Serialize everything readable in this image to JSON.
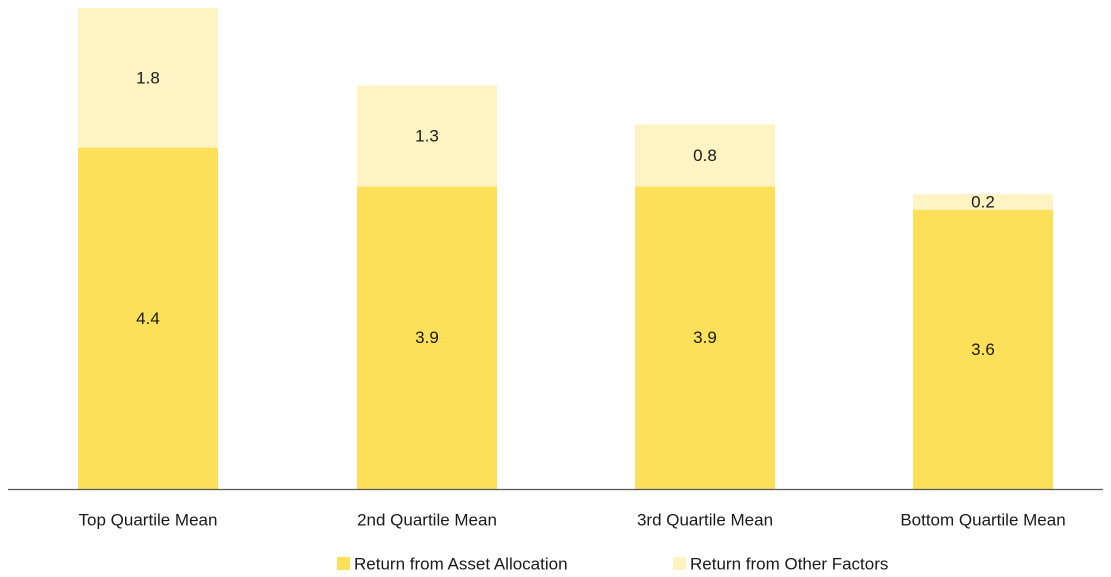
{
  "chart_data": {
    "type": "bar",
    "stacked": true,
    "title": "",
    "xlabel": "",
    "ylabel": "",
    "categories": [
      "Top Quartile Mean",
      "2nd Quartile Mean",
      "3rd Quartile Mean",
      "Bottom Quartile Mean"
    ],
    "series": [
      {
        "name": "Return from Asset Allocation",
        "color": "#fde05a",
        "values": [
          4.4,
          3.9,
          3.9,
          3.6
        ]
      },
      {
        "name": "Return from Other Factors",
        "color": "#fef3c2",
        "values": [
          1.8,
          1.3,
          0.8,
          0.2
        ]
      }
    ],
    "ylim": [
      0,
      6.2
    ],
    "grid": false,
    "legend_position": "bottom",
    "axis_color": "#555555"
  }
}
